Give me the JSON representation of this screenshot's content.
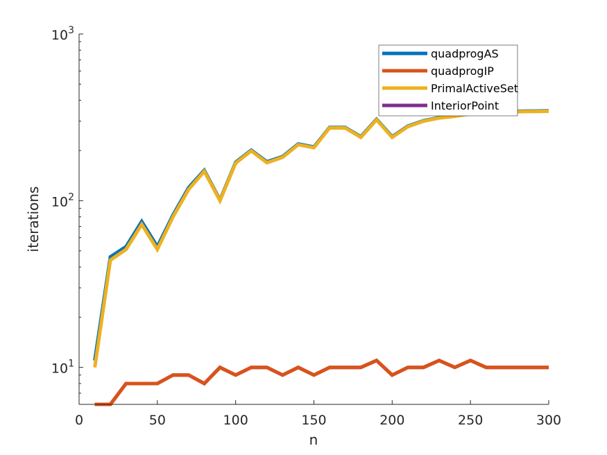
{
  "chart_data": {
    "type": "line",
    "xlabel": "n",
    "ylabel": "iterations",
    "x_scale": "linear",
    "y_scale": "log",
    "xlim": [
      0,
      300
    ],
    "ylim": [
      6,
      1000
    ],
    "grid": false,
    "legend_position": "top-right",
    "x_ticks": [
      "0",
      "50",
      "100",
      "150",
      "200",
      "250",
      "300"
    ],
    "y_ticks": [
      {
        "value": 10,
        "base": "10",
        "exp": "1"
      },
      {
        "value": 100,
        "base": "10",
        "exp": "2"
      },
      {
        "value": 1000,
        "base": "10",
        "exp": "3"
      }
    ],
    "x": [
      10,
      20,
      30,
      40,
      50,
      60,
      70,
      80,
      90,
      100,
      110,
      120,
      130,
      140,
      150,
      160,
      170,
      180,
      190,
      200,
      210,
      220,
      230,
      240,
      250,
      260,
      270,
      280,
      290,
      300
    ],
    "series": [
      {
        "name": "quadprogAS",
        "color": "#0072BD",
        "values": [
          11,
          46,
          53,
          75,
          53,
          82,
          120,
          152,
          101,
          170,
          201,
          171,
          184,
          219,
          210,
          275,
          275,
          242,
          308,
          242,
          280,
          302,
          315,
          323,
          334,
          340,
          342,
          344,
          345,
          346
        ]
      },
      {
        "name": "quadprogIP",
        "color": "#D95319",
        "values": [
          6,
          6,
          8,
          8,
          8,
          9,
          9,
          8,
          10,
          9,
          10,
          10,
          9,
          10,
          9,
          10,
          10,
          10,
          11,
          9,
          10,
          10,
          11,
          10,
          11,
          10,
          10,
          10,
          10,
          10
        ]
      },
      {
        "name": "PrimalActiveSet",
        "color": "#EDB120",
        "values": [
          10,
          44,
          51,
          72,
          51,
          80,
          117,
          150,
          100,
          168,
          199,
          169,
          182,
          217,
          208,
          273,
          273,
          240,
          306,
          240,
          278,
          300,
          313,
          321,
          332,
          338,
          340,
          342,
          343,
          344
        ]
      },
      {
        "name": "InteriorPoint",
        "color": "#7E2F8E",
        "values": [
          6,
          6,
          8,
          8,
          8,
          9,
          9,
          8,
          10,
          9,
          10,
          10,
          9,
          10,
          9,
          10,
          10,
          10,
          11,
          9,
          10,
          10,
          11,
          10,
          11,
          10,
          10,
          10,
          10,
          10
        ]
      }
    ],
    "draw_order": [
      3,
      1,
      0,
      2
    ]
  }
}
